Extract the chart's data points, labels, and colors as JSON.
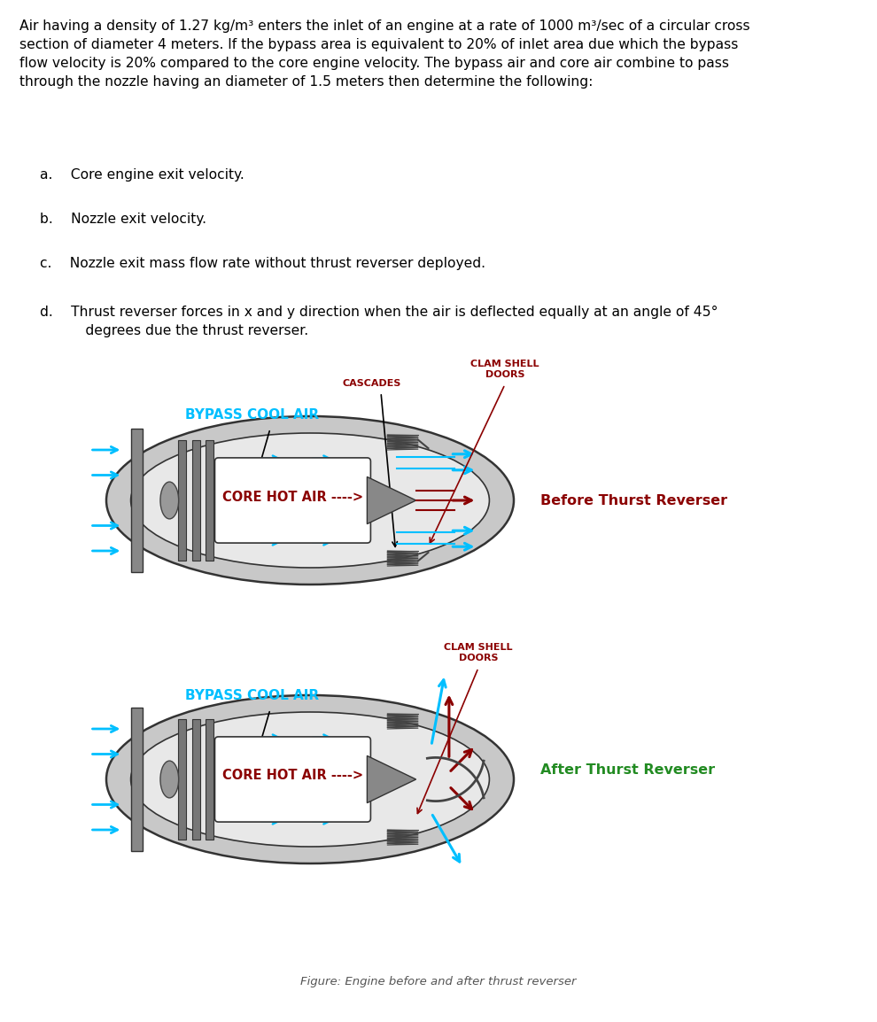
{
  "title_text": "Air having a density of 1.27 kg/m³ enters the inlet of an engine at a rate of 1000 m³/sec of a circular cross\nsection of diameter 4 meters. If the bypass area is equivalent to 20% of inlet area due which the bypass\nflow velocity is 20% compared to the core engine velocity. The bypass air and core air combine to pass\nthrough the nozzle having an diameter of 1.5 meters then determine the following:",
  "items": [
    "a.  Core engine exit velocity.",
    "b.  Nozzle exit velocity.",
    "c.  Nozzle exit mass flow rate without thrust reverser deployed.",
    "d.  Thrust reverser forces in x and y direction when the air is deflected equally at an angle of 45°\n    degrees due the thrust reverser."
  ],
  "label_cascades": "CASCADES",
  "label_clam1": "CLAM SHELL\nDOORS",
  "label_clam2": "CLAM SHELL\nDOORS",
  "label_bypass1": "BYPASS COOL AIR",
  "label_bypass2": "BYPASS COOL AIR",
  "label_core1": "CORE HOT AIR ---->",
  "label_core2": "CORE HOT AIR ---->",
  "label_before": "Before Thurst Reverser",
  "label_after": "After Thurst Reverser",
  "label_figure": "Figure: Engine before and after thrust reverser",
  "color_bypass": "#00BFFF",
  "color_core": "#8B0000",
  "color_cascades": "#8B0000",
  "color_clam": "#8B0000",
  "color_before": "#8B0000",
  "color_after": "#228B22",
  "color_figure": "#555555",
  "bg_color": "#ffffff"
}
